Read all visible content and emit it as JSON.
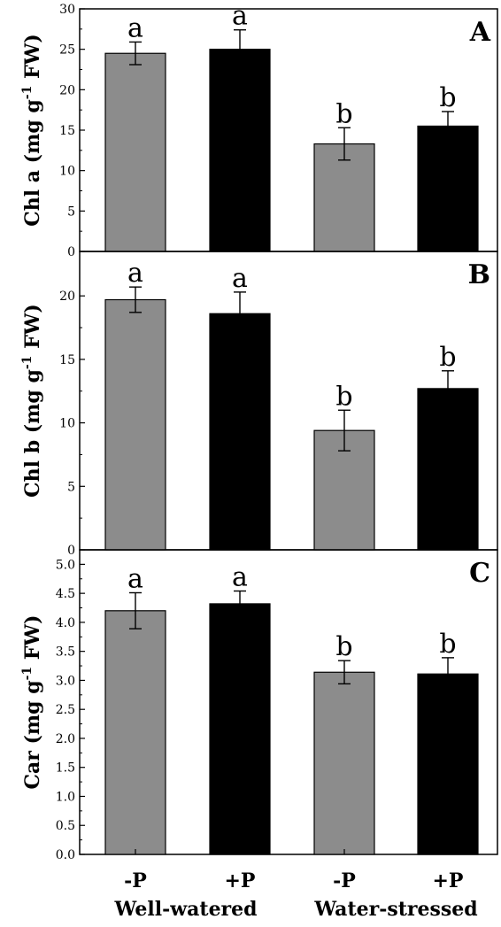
{
  "chart_data": {
    "type": "bar",
    "categories": [
      "-P",
      "+P",
      "-P",
      "+P"
    ],
    "groups": [
      "Well-watered",
      "Water-stressed"
    ],
    "colors": [
      "#8c8c8c",
      "#000000",
      "#8c8c8c",
      "#000000"
    ],
    "panels": [
      {
        "letter": "A",
        "ylabel": {
          "pre": "Chl a (mg g",
          "sup": "-1",
          "post": " FW)"
        },
        "ylim": [
          0,
          30
        ],
        "yticks": [
          "0",
          "5",
          "10",
          "15",
          "20",
          "25",
          "30"
        ],
        "values": [
          24.5,
          25.0,
          13.3,
          15.5
        ],
        "errors": [
          1.4,
          2.4,
          2.0,
          1.8
        ],
        "sig": [
          "a",
          "a",
          "b",
          "b"
        ]
      },
      {
        "letter": "B",
        "ylabel": {
          "pre": "Chl b (mg g",
          "sup": "-1",
          "post": " FW)"
        },
        "ylim": [
          0,
          23.5
        ],
        "yticks": [
          "0",
          "5",
          "10",
          "15",
          "20"
        ],
        "values": [
          19.7,
          18.6,
          9.4,
          12.7
        ],
        "errors": [
          1.0,
          1.7,
          1.6,
          1.4
        ],
        "sig": [
          "a",
          "a",
          "b",
          "b"
        ]
      },
      {
        "letter": "C",
        "ylabel": {
          "pre": "Car (mg g",
          "sup": "-1",
          "post": " FW)"
        },
        "ylim": [
          0,
          5.25
        ],
        "yticks": [
          "0.0",
          "0.5",
          "1.0",
          "1.5",
          "2.0",
          "2.5",
          "3.0",
          "3.5",
          "4.0",
          "4.5",
          "5.0"
        ],
        "values": [
          4.2,
          4.32,
          3.14,
          3.11
        ],
        "errors": [
          0.31,
          0.22,
          0.2,
          0.28
        ],
        "sig": [
          "a",
          "a",
          "b",
          "b"
        ]
      }
    ]
  }
}
